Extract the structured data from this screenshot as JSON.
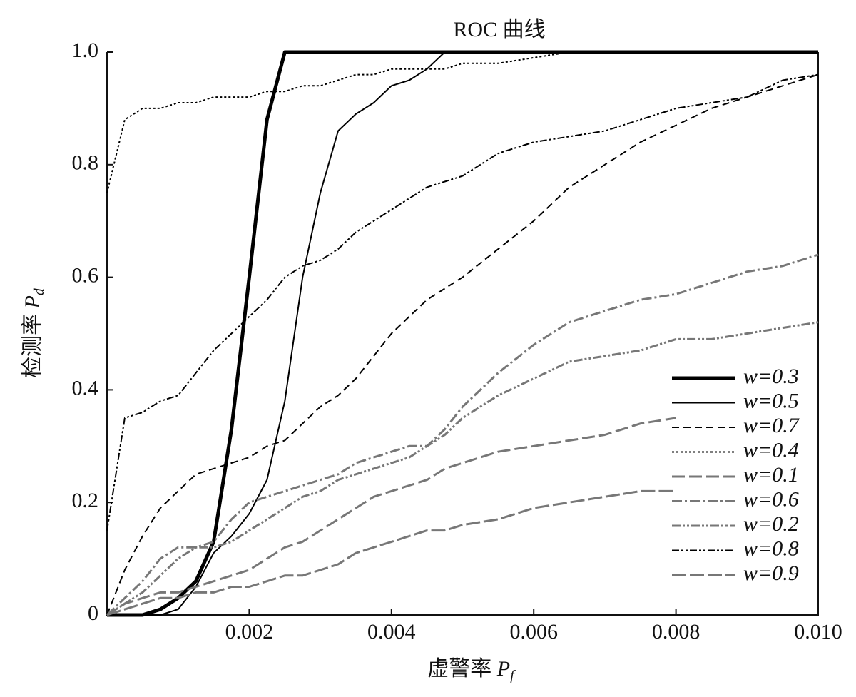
{
  "chart_data": {
    "type": "line",
    "title": "ROC 曲线",
    "xlabel": {
      "text": "虚警率",
      "symbol": "P",
      "subscript": "f"
    },
    "ylabel": {
      "text": "检测率",
      "symbol": "P",
      "subscript": "d"
    },
    "x": [
      0,
      0.00025,
      0.0005,
      0.00075,
      0.001,
      0.00125,
      0.0015,
      0.00175,
      0.002,
      0.00225,
      0.0025,
      0.00275,
      0.003,
      0.00325,
      0.0035,
      0.00375,
      0.004,
      0.00425,
      0.0045,
      0.00475,
      0.005,
      0.0055,
      0.006,
      0.0065,
      0.007,
      0.0075,
      0.008,
      0.0085,
      0.009,
      0.0095,
      0.01
    ],
    "xlim": [
      0,
      0.01
    ],
    "xticks": [
      0.002,
      0.004,
      0.006,
      0.008,
      {
        "value": 0.01,
        "label": "0.010"
      }
    ],
    "ylim": [
      0,
      1
    ],
    "yticks": [
      0,
      0.2,
      0.4,
      0.6,
      0.8,
      {
        "value": 1,
        "label": "1.0"
      }
    ],
    "legend": "lower right",
    "series": [
      {
        "name": "w=0.3",
        "color": "#000000",
        "values": [
          0,
          0,
          0,
          0.01,
          0.03,
          0.06,
          0.13,
          0.33,
          0.6,
          0.88,
          1,
          1,
          1,
          1,
          1,
          1,
          1,
          1,
          1,
          1,
          1,
          1,
          1,
          1,
          1,
          1,
          1,
          1,
          1,
          1,
          1
        ]
      },
      {
        "name": "w=0.5",
        "color": "#000000",
        "values": [
          0,
          0,
          0,
          0,
          0.01,
          0.05,
          0.11,
          0.14,
          0.18,
          0.24,
          0.38,
          0.6,
          0.75,
          0.86,
          0.89,
          0.91,
          0.94,
          0.95,
          0.97,
          1,
          1,
          1,
          1,
          1,
          1,
          1,
          1,
          1,
          1,
          1,
          1
        ]
      },
      {
        "name": "w=0.7",
        "color": "#000000",
        "values": [
          0,
          0.08,
          0.14,
          0.19,
          0.22,
          0.25,
          0.26,
          0.27,
          0.28,
          0.3,
          0.31,
          0.34,
          0.37,
          0.39,
          0.42,
          0.46,
          0.5,
          0.53,
          0.56,
          0.58,
          0.6,
          0.65,
          0.7,
          0.76,
          0.8,
          0.84,
          0.87,
          0.9,
          0.92,
          0.94,
          0.96
        ]
      },
      {
        "name": "w=0.4",
        "color": "#000000",
        "values": [
          0.75,
          0.88,
          0.9,
          0.9,
          0.91,
          0.91,
          0.92,
          0.92,
          0.92,
          0.93,
          0.93,
          0.94,
          0.94,
          0.95,
          0.96,
          0.96,
          0.97,
          0.97,
          0.97,
          0.97,
          0.98,
          0.98,
          0.99,
          1,
          1,
          1,
          1,
          1,
          1,
          1,
          1
        ]
      },
      {
        "name": "w=0.1",
        "color": "#777777",
        "values": [
          0,
          0.02,
          0.03,
          0.04,
          0.04,
          0.05,
          0.06,
          0.07,
          0.08,
          0.1,
          0.12,
          0.13,
          0.15,
          0.17,
          0.19,
          0.21,
          0.22,
          0.23,
          0.24,
          0.26,
          0.27,
          0.29,
          0.3,
          0.31,
          0.32,
          0.34,
          0.35,
          null,
          null,
          null,
          null
        ]
      },
      {
        "name": "w=0.6",
        "color": "#777777",
        "values": [
          0,
          0.03,
          0.06,
          0.1,
          0.12,
          0.12,
          0.13,
          0.17,
          0.2,
          0.21,
          0.22,
          0.23,
          0.24,
          0.25,
          0.27,
          0.28,
          0.29,
          0.3,
          0.3,
          0.33,
          0.37,
          0.43,
          0.48,
          0.52,
          0.54,
          0.56,
          0.57,
          0.59,
          0.61,
          0.62,
          0.64
        ]
      },
      {
        "name": "w=0.2",
        "color": "#777777",
        "values": [
          0,
          0.02,
          0.04,
          0.07,
          0.1,
          0.12,
          0.12,
          0.13,
          0.15,
          0.17,
          0.19,
          0.21,
          0.22,
          0.24,
          0.25,
          0.26,
          0.27,
          0.28,
          0.3,
          0.32,
          0.35,
          0.39,
          0.42,
          0.45,
          0.46,
          0.47,
          0.49,
          0.49,
          0.5,
          0.51,
          0.52
        ]
      },
      {
        "name": "w=0.8",
        "color": "#000000",
        "values": [
          0.15,
          0.35,
          0.36,
          0.38,
          0.39,
          0.43,
          0.47,
          0.5,
          0.53,
          0.56,
          0.6,
          0.62,
          0.63,
          0.65,
          0.68,
          0.7,
          0.72,
          0.74,
          0.76,
          0.77,
          0.78,
          0.82,
          0.84,
          0.85,
          0.86,
          0.88,
          0.9,
          0.91,
          0.92,
          0.95,
          0.96
        ]
      },
      {
        "name": "w=0.9",
        "color": "#777777",
        "values": [
          0,
          0.01,
          0.02,
          0.03,
          0.03,
          0.04,
          0.04,
          0.05,
          0.05,
          0.06,
          0.07,
          0.07,
          0.08,
          0.09,
          0.11,
          0.12,
          0.13,
          0.14,
          0.15,
          0.15,
          0.16,
          0.17,
          0.19,
          0.2,
          0.21,
          0.22,
          0.22,
          null,
          null,
          null,
          null
        ]
      }
    ]
  }
}
